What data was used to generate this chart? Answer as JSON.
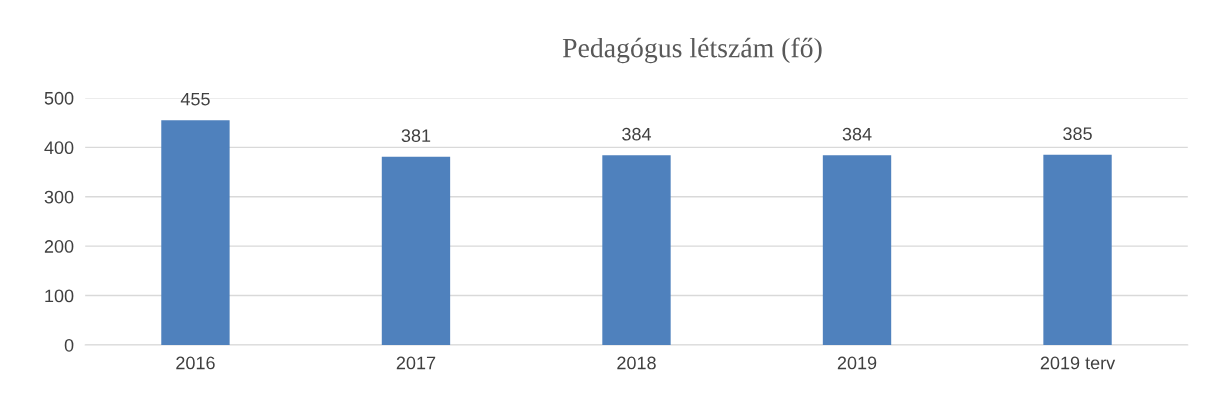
{
  "chart_data": {
    "type": "bar",
    "title": "Pedagógus létszám (fő)",
    "categories": [
      "2016",
      "2017",
      "2018",
      "2019",
      "2019 terv"
    ],
    "values": [
      455,
      381,
      384,
      384,
      385
    ],
    "color": "#4f81bd",
    "ylim": [
      0,
      500
    ],
    "yticks": [
      0,
      100,
      200,
      300,
      400,
      500
    ],
    "grid": "y",
    "data_labels": true,
    "legend": false
  }
}
